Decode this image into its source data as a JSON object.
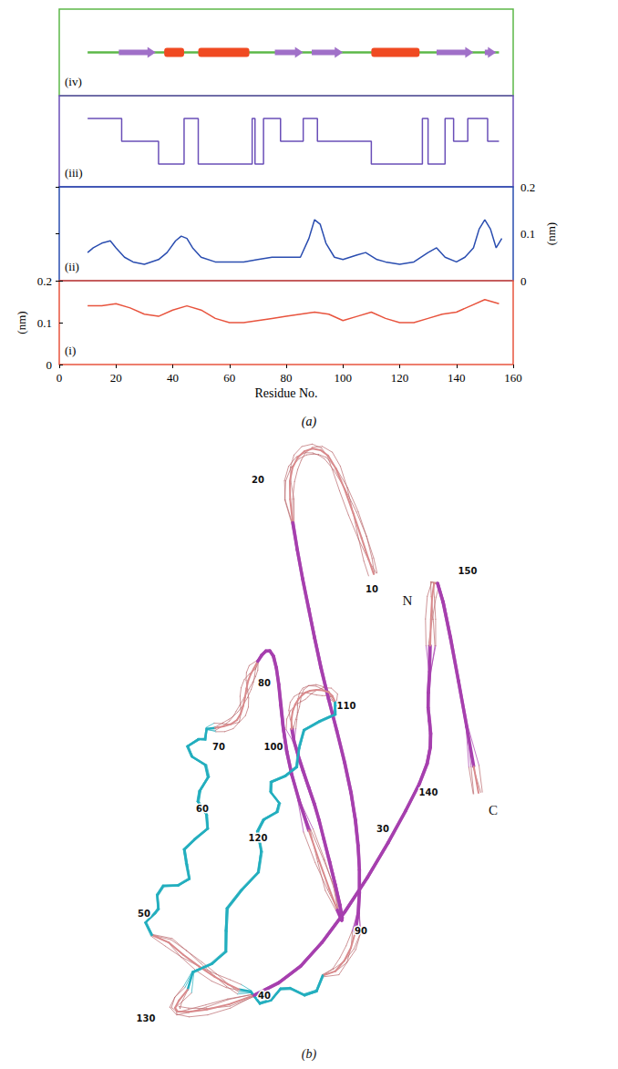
{
  "figure_label": "(a)",
  "chart_data": [
    {
      "type": "secondary_structure",
      "label": "(iv)",
      "color": "#5cb848",
      "xlim": [
        0,
        160
      ],
      "tick_labels": false,
      "elements": [
        {
          "type": "coil",
          "start": 10,
          "end": 155,
          "color": "#5cb848"
        },
        {
          "type": "strand",
          "start": 21,
          "end": 34,
          "color": "#a070c8"
        },
        {
          "type": "helix",
          "start": 37,
          "end": 44,
          "color": "#f04a22"
        },
        {
          "type": "helix",
          "start": 49,
          "end": 67,
          "color": "#f04a22"
        },
        {
          "type": "strand",
          "start": 76,
          "end": 86,
          "color": "#a070c8"
        },
        {
          "type": "strand",
          "start": 89,
          "end": 100,
          "color": "#a070c8"
        },
        {
          "type": "helix",
          "start": 110,
          "end": 127,
          "color": "#f04a22"
        },
        {
          "type": "strand",
          "start": 133,
          "end": 146,
          "color": "#a070c8"
        },
        {
          "type": "strand",
          "start": 150,
          "end": 154,
          "color": "#a070c8"
        }
      ]
    },
    {
      "type": "line",
      "label": "(iii)",
      "line_style": "step",
      "color": "#6a4fb8",
      "xlim": [
        0,
        160
      ],
      "ylim": [
        -1,
        3
      ],
      "tick_labels": false,
      "x": [
        10,
        22,
        35,
        44,
        49,
        68,
        69,
        72,
        78,
        86,
        91,
        110,
        128,
        130,
        136,
        139,
        144,
        151,
        155
      ],
      "values": [
        2,
        1,
        0,
        2,
        0,
        2,
        0,
        2,
        1,
        2,
        1,
        0,
        2,
        0,
        2,
        1,
        2,
        1,
        1
      ]
    },
    {
      "type": "line",
      "label": "(ii)",
      "color": "#2a4db0",
      "xlim": [
        0,
        160
      ],
      "y2lim": [
        0,
        0.2
      ],
      "y2ticks": [
        0,
        0.1,
        0.2
      ],
      "y2_label": "(nm)",
      "tick_labels": "y",
      "x": [
        10,
        12,
        15,
        18,
        20,
        23,
        26,
        30,
        35,
        38,
        41,
        43,
        45,
        47,
        50,
        55,
        60,
        65,
        70,
        75,
        80,
        85,
        88,
        90,
        92,
        94,
        97,
        100,
        105,
        108,
        112,
        115,
        120,
        125,
        130,
        133,
        136,
        140,
        143,
        146,
        148,
        150,
        152,
        154,
        156
      ],
      "values": [
        0.06,
        0.07,
        0.08,
        0.085,
        0.07,
        0.05,
        0.04,
        0.035,
        0.045,
        0.06,
        0.085,
        0.095,
        0.09,
        0.07,
        0.05,
        0.04,
        0.04,
        0.04,
        0.045,
        0.05,
        0.05,
        0.05,
        0.09,
        0.13,
        0.12,
        0.08,
        0.05,
        0.045,
        0.055,
        0.06,
        0.045,
        0.04,
        0.035,
        0.04,
        0.06,
        0.07,
        0.05,
        0.04,
        0.05,
        0.07,
        0.11,
        0.13,
        0.11,
        0.07,
        0.09
      ]
    },
    {
      "type": "line",
      "label": "(i)",
      "color": "#e8543e",
      "xlim": [
        0,
        160
      ],
      "xticks": [
        0,
        20,
        40,
        60,
        80,
        100,
        120,
        140,
        160
      ],
      "x_label": "Residue No.",
      "ylim": [
        0,
        0.2
      ],
      "yticks": [
        0,
        0.1,
        0.2
      ],
      "y_label": "(nm)",
      "x": [
        10,
        15,
        20,
        25,
        30,
        35,
        40,
        45,
        50,
        55,
        60,
        65,
        70,
        75,
        80,
        85,
        90,
        95,
        100,
        105,
        110,
        115,
        120,
        125,
        130,
        135,
        140,
        145,
        150,
        155
      ],
      "values": [
        0.14,
        0.14,
        0.145,
        0.135,
        0.12,
        0.115,
        0.13,
        0.14,
        0.13,
        0.11,
        0.1,
        0.1,
        0.105,
        0.11,
        0.115,
        0.12,
        0.125,
        0.12,
        0.105,
        0.115,
        0.125,
        0.11,
        0.1,
        0.1,
        0.11,
        0.12,
        0.125,
        0.14,
        0.155,
        0.145
      ]
    }
  ],
  "structure_panel": {
    "label": "(b)",
    "residue_labels": [
      10,
      20,
      30,
      40,
      50,
      60,
      70,
      80,
      90,
      100,
      110,
      120,
      130,
      140,
      150
    ],
    "termini": [
      "N",
      "C"
    ]
  }
}
